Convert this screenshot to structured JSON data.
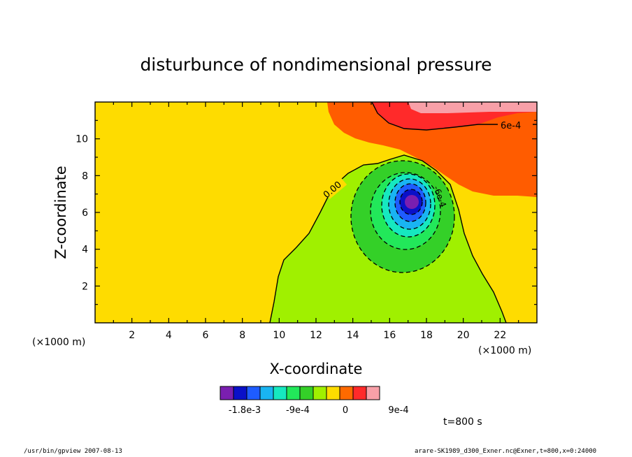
{
  "chart_data": {
    "type": "heatmap",
    "title": "disturbunce of nondimensional pressure",
    "xlabel": "X-coordinate",
    "ylabel": "Z-coordinate",
    "x_unit": "(×1000 m)",
    "y_unit": "(×1000 m)",
    "xlim": [
      0,
      24
    ],
    "ylim": [
      0,
      12
    ],
    "x_ticks": [
      2,
      4,
      6,
      8,
      10,
      12,
      14,
      16,
      18,
      20,
      22
    ],
    "y_ticks": [
      2,
      4,
      6,
      8,
      10
    ],
    "color_levels": [
      {
        "color": "#7a1fb0"
      },
      {
        "color": "#0a10c8"
      },
      {
        "color": "#1e5cff"
      },
      {
        "color": "#19b4f2"
      },
      {
        "color": "#16e8c0"
      },
      {
        "color": "#22e85a"
      },
      {
        "color": "#34d028"
      },
      {
        "color": "#a0f000"
      },
      {
        "color": "#fedc00"
      },
      {
        "color": "#ff6a00"
      },
      {
        "color": "#ff2a2a"
      },
      {
        "color": "#f8a0a8"
      }
    ],
    "colorbar_labels": [
      "-1.8e-3",
      "-9e-4",
      "0",
      "9e-4"
    ],
    "contour_labels": [
      "0.00",
      "6e-4",
      "-6e-4"
    ],
    "minimum_center": {
      "x": 17.1,
      "z": 6.5
    },
    "time_label": "t=800 s"
  },
  "footer": {
    "left": "/usr/bin/gpview   2007-08-13",
    "right": "arare-SK1989_d300_Exner.nc@Exner,t=800,x=0:24000"
  }
}
